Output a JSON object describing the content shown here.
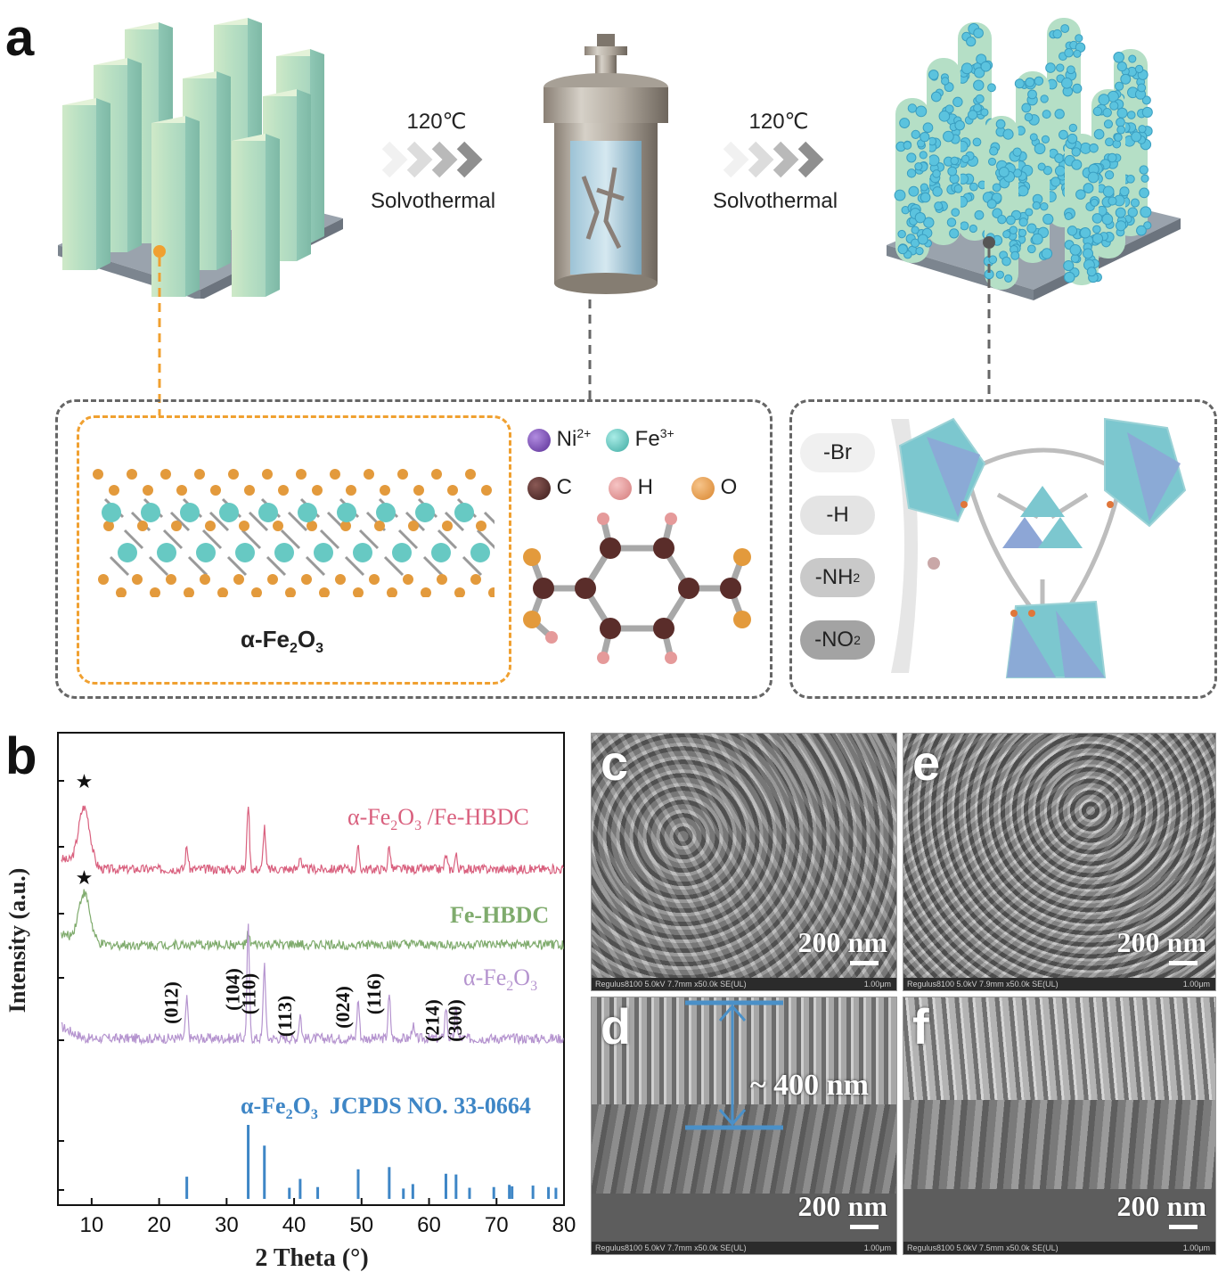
{
  "panels": {
    "a": "a",
    "b": "b",
    "c": "c",
    "d": "d",
    "e": "e",
    "f": "f"
  },
  "arrows": [
    {
      "temp": "120℃",
      "label": "Solvothermal"
    },
    {
      "temp": "120℃",
      "label": "Solvothermal"
    }
  ],
  "legend": {
    "ni": "Ni",
    "ni_sup": "2+",
    "fe": "Fe",
    "fe_sup": "3+",
    "c": "C",
    "h": "H",
    "o": "O"
  },
  "hematite_label": {
    "pre": "α-Fe",
    "s1": "2",
    "mid": "O",
    "s2": "3"
  },
  "ligands": [
    {
      "text": "-Br",
      "sub": ""
    },
    {
      "text": "-H",
      "sub": ""
    },
    {
      "text": "-NH",
      "sub": "2"
    },
    {
      "text": "-NO",
      "sub": "2"
    }
  ],
  "colors": {
    "teal": "#67c9c3",
    "orange": "#e39a3c",
    "brown": "#5a2d2a",
    "pink": "#e59a9a",
    "purple": "#7a4fb5",
    "pink_trace": "#d9607e",
    "green_trace": "#7fab6d",
    "purple_trace": "#b594cf",
    "ref_blue": "#3e86c6",
    "substrate": "#9aa3ad"
  },
  "chart_data": {
    "type": "line",
    "xlabel": "2 Theta (°)",
    "ylabel": "Intensity (a.u.)",
    "xlim": [
      5,
      80
    ],
    "xticks": [
      10,
      20,
      30,
      40,
      50,
      60,
      70,
      80
    ],
    "series": [
      {
        "name": "α-Fe2O3 /Fe-HBDC",
        "label_pre": "α-Fe",
        "label_s1": "2",
        "label_mid": "O",
        "label_s2": "3",
        "label_post": " /Fe-HBDC",
        "color": "#d9607e",
        "peaks": [
          [
            8.9,
            60
          ],
          [
            24.1,
            22
          ],
          [
            33.2,
            65
          ],
          [
            35.6,
            42
          ],
          [
            40.9,
            14
          ],
          [
            49.5,
            20
          ],
          [
            54.1,
            22
          ],
          [
            62.5,
            14
          ],
          [
            64.0,
            14
          ]
        ],
        "marker": "★"
      },
      {
        "name": "Fe-HBDC",
        "color": "#7fab6d",
        "peaks": [
          [
            8.9,
            48
          ],
          [
            33.2,
            10
          ]
        ],
        "marker": "★"
      },
      {
        "name": "α-Fe2O3",
        "label_pre": "α-Fe",
        "label_s1": "2",
        "label_mid": "O",
        "label_s2": "3",
        "label_post": "",
        "color": "#b594cf",
        "peaks": [
          [
            24.1,
            35
          ],
          [
            33.2,
            100
          ],
          [
            35.6,
            68
          ],
          [
            40.9,
            22
          ],
          [
            49.5,
            35
          ],
          [
            54.1,
            38
          ],
          [
            57.6,
            12
          ],
          [
            62.5,
            28
          ],
          [
            64.0,
            26
          ]
        ]
      }
    ],
    "peak_labels": [
      {
        "x": 24.1,
        "text": "(012)"
      },
      {
        "x": 33.2,
        "text": "(104)"
      },
      {
        "x": 35.6,
        "text": "(110)"
      },
      {
        "x": 40.9,
        "text": "(113)"
      },
      {
        "x": 49.5,
        "text": "(024)"
      },
      {
        "x": 54.1,
        "text": "(116)"
      },
      {
        "x": 62.5,
        "text": "(214)"
      },
      {
        "x": 64.0,
        "text": "(300)"
      }
    ],
    "reference": {
      "label_pre": "α-Fe",
      "label_s1": "2",
      "label_mid": "O",
      "label_s2": "3",
      "label_post": "  JCPDS NO. 33-0664",
      "color": "#3e86c6",
      "lines": [
        [
          24.1,
          30
        ],
        [
          33.2,
          100
        ],
        [
          35.6,
          72
        ],
        [
          39.3,
          15
        ],
        [
          40.9,
          27
        ],
        [
          43.5,
          16
        ],
        [
          49.5,
          40
        ],
        [
          54.1,
          43
        ],
        [
          56.2,
          14
        ],
        [
          57.6,
          20
        ],
        [
          62.5,
          34
        ],
        [
          64.0,
          33
        ],
        [
          66.0,
          15
        ],
        [
          69.6,
          16
        ],
        [
          71.9,
          19
        ],
        [
          72.3,
          17
        ],
        [
          75.4,
          18
        ],
        [
          77.7,
          16
        ],
        [
          78.8,
          15
        ]
      ]
    }
  },
  "sem": {
    "c": {
      "scale": "200 nm",
      "info": "Regulus8100 5.0kV 7.7mm x50.0k SE(UL)",
      "bar": "1.00μm"
    },
    "e": {
      "scale": "200 nm",
      "info": "Regulus8100 5.0kV 7.9mm x50.0k SE(UL)",
      "bar": "1.00μm"
    },
    "d": {
      "scale": "200 nm",
      "thickness": "~ 400 nm",
      "info": "Regulus8100 5.0kV 7.7mm x50.0k SE(UL)",
      "bar": "1.00μm"
    },
    "f": {
      "scale": "200 nm",
      "info": "Regulus8100 5.0kV 7.5mm x50.0k SE(UL)",
      "bar": "1.00μm"
    }
  }
}
